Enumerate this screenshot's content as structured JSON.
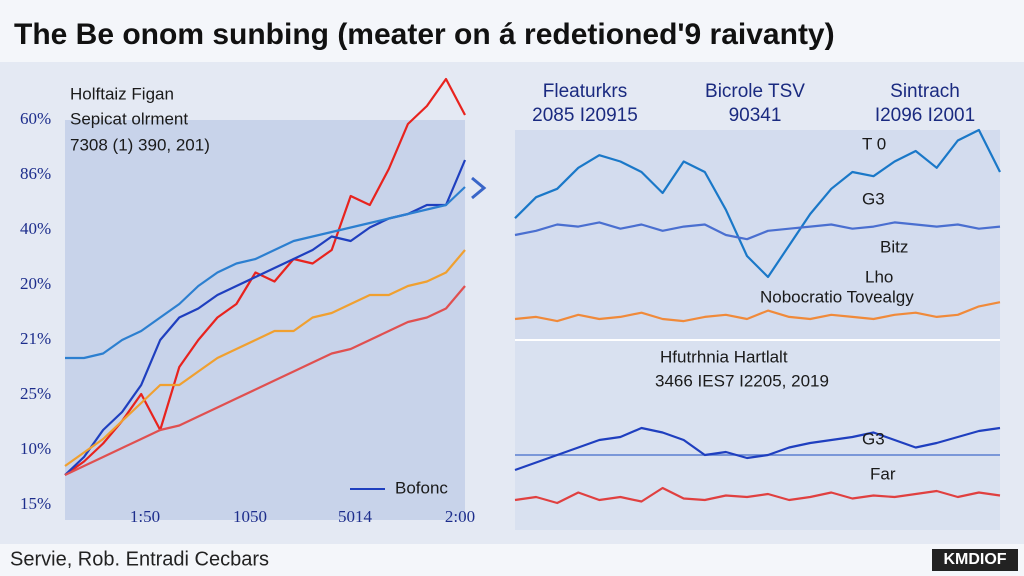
{
  "title": "The Be onom sunbing (meater on á redetioned'9 raivanty)",
  "footer": "Servie, Rob. Entradi Cecbars",
  "badge": "KMDIOF",
  "chart_data": [
    {
      "type": "line",
      "title": "Holftaiz Figan",
      "subtitle": "Sepicat olrment",
      "note": "7308 (1) 390, 201)",
      "axis_labels": [
        "60%",
        "86%",
        "40%",
        "20%",
        "21%",
        "25%",
        "10%",
        "15%"
      ],
      "x_labels": [
        "1:50",
        "1050",
        "5014",
        "2:00"
      ],
      "legend_label": "Bofonc",
      "ylim": [
        0,
        100
      ],
      "series": [
        {
          "color": "#e8231e",
          "values": [
            10,
            13,
            17,
            22,
            28,
            20,
            34,
            40,
            45,
            48,
            55,
            53,
            58,
            57,
            60,
            72,
            70,
            78,
            88,
            92,
            98,
            90
          ]
        },
        {
          "color": "#1f3fbf",
          "values": [
            10,
            14,
            20,
            24,
            30,
            40,
            45,
            47,
            50,
            52,
            54,
            56,
            58,
            60,
            63,
            62,
            65,
            67,
            68,
            70,
            70,
            80
          ]
        },
        {
          "color": "#2c7fd0",
          "values": [
            36,
            36,
            37,
            40,
            42,
            45,
            48,
            52,
            55,
            57,
            58,
            60,
            62,
            63,
            64,
            65,
            66,
            67,
            68,
            69,
            70,
            74
          ]
        },
        {
          "color": "#f0a030",
          "values": [
            12,
            15,
            18,
            22,
            26,
            30,
            30,
            33,
            36,
            38,
            40,
            42,
            42,
            45,
            46,
            48,
            50,
            50,
            52,
            53,
            55,
            60
          ]
        },
        {
          "color": "#e05050",
          "values": [
            10,
            12,
            14,
            16,
            18,
            20,
            21,
            23,
            25,
            27,
            29,
            31,
            33,
            35,
            37,
            38,
            40,
            42,
            44,
            45,
            47,
            52
          ]
        }
      ]
    },
    {
      "type": "line",
      "headers": [
        [
          "Fleaturkrs",
          "2085 I20915"
        ],
        [
          "Bicrole TSV",
          "90341"
        ],
        [
          "Sintrach",
          "I2096 I2001"
        ]
      ],
      "annotations": [
        "T 0",
        "G3",
        "Bitz",
        "Lho",
        "Nobocratio Tovealgy"
      ],
      "ylim": [
        0,
        100
      ],
      "series": [
        {
          "color": "#1a78c8",
          "values": [
            58,
            68,
            72,
            82,
            88,
            85,
            80,
            70,
            85,
            80,
            62,
            40,
            30,
            45,
            60,
            72,
            80,
            78,
            85,
            90,
            82,
            95,
            100,
            80
          ]
        },
        {
          "color": "#4a6fd0",
          "values": [
            50,
            52,
            55,
            54,
            56,
            53,
            55,
            52,
            54,
            55,
            50,
            48,
            52,
            53,
            54,
            55,
            53,
            54,
            56,
            55,
            54,
            55,
            53,
            54
          ]
        },
        {
          "color": "#f08a3a",
          "values": [
            10,
            11,
            9,
            12,
            10,
            11,
            13,
            10,
            9,
            11,
            12,
            10,
            14,
            11,
            10,
            12,
            11,
            10,
            12,
            13,
            11,
            12,
            16,
            18
          ]
        }
      ]
    },
    {
      "type": "line",
      "title": "Hfutrhnia Hartlalt",
      "subtitle": "3466 IES7 I2205, 2019",
      "annotations": [
        "G3",
        "Far"
      ],
      "ylim": [
        0,
        100
      ],
      "series": [
        {
          "color": "#1f3fbf",
          "values": [
            40,
            45,
            50,
            55,
            60,
            62,
            68,
            65,
            60,
            50,
            52,
            48,
            50,
            55,
            58,
            60,
            62,
            65,
            60,
            55,
            58,
            62,
            66,
            68
          ]
        },
        {
          "color": "#e04040",
          "values": [
            20,
            22,
            18,
            25,
            20,
            22,
            19,
            28,
            21,
            20,
            23,
            22,
            24,
            20,
            22,
            25,
            21,
            23,
            22,
            24,
            26,
            22,
            25,
            23
          ]
        }
      ]
    }
  ]
}
